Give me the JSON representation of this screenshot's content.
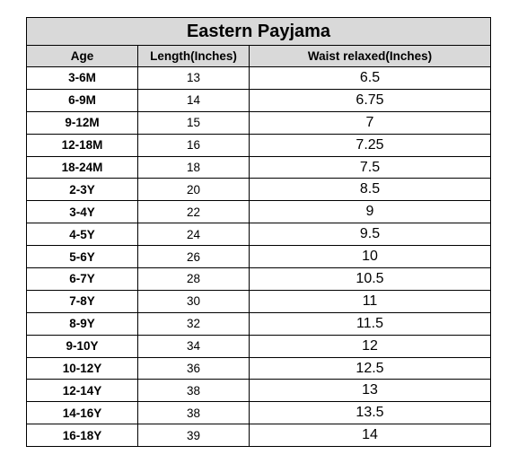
{
  "title": "Eastern Payjama",
  "table": {
    "header": [
      "Age",
      "Length(Inches)",
      "Waist relaxed(Inches)"
    ],
    "rows": [
      [
        "3-6M",
        "13",
        "6.5"
      ],
      [
        "6-9M",
        "14",
        "6.75"
      ],
      [
        "9-12M",
        "15",
        "7"
      ],
      [
        "12-18M",
        "16",
        "7.25"
      ],
      [
        "18-24M",
        "18",
        "7.5"
      ],
      [
        "2-3Y",
        "20",
        "8.5"
      ],
      [
        "3-4Y",
        "22",
        "9"
      ],
      [
        "4-5Y",
        "24",
        "9.5"
      ],
      [
        "5-6Y",
        "26",
        "10"
      ],
      [
        "6-7Y",
        "28",
        "10.5"
      ],
      [
        "7-8Y",
        "30",
        "11"
      ],
      [
        "8-9Y",
        "32",
        "11.5"
      ],
      [
        "9-10Y",
        "34",
        "12"
      ],
      [
        "10-12Y",
        "36",
        "12.5"
      ],
      [
        "12-14Y",
        "38",
        "13"
      ],
      [
        "14-16Y",
        "38",
        "13.5"
      ],
      [
        "16-18Y",
        "39",
        "14"
      ]
    ]
  }
}
